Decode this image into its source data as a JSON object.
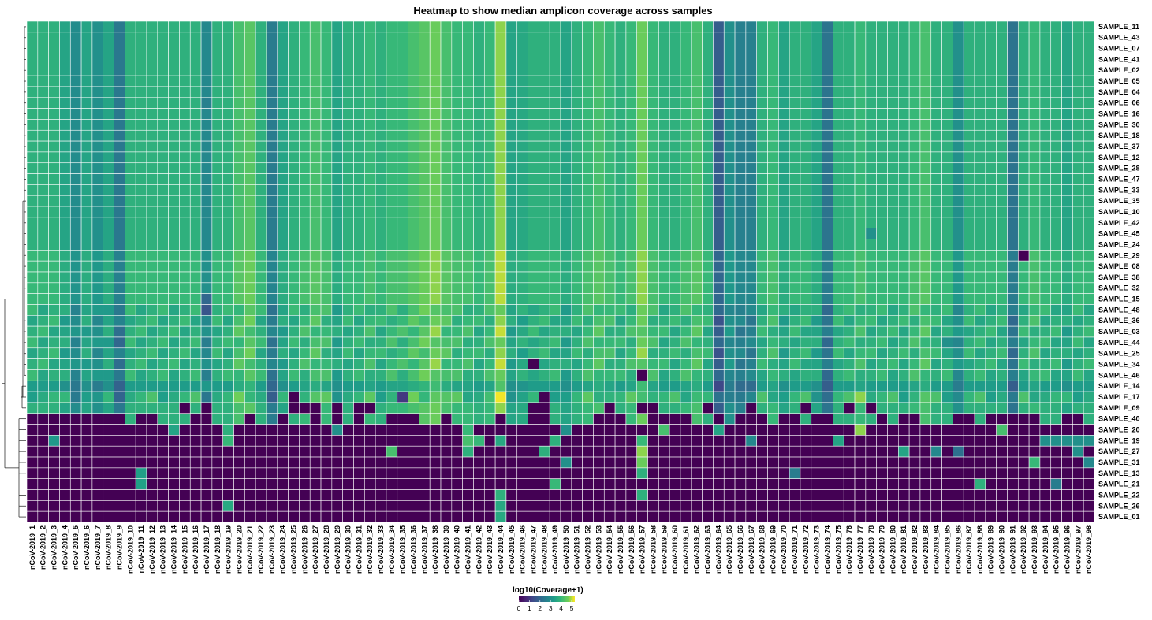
{
  "chart_data": {
    "type": "heatmap",
    "title": "Heatmap to show median amplicon coverage across samples",
    "rows": [
      "SAMPLE_11",
      "SAMPLE_43",
      "SAMPLE_07",
      "SAMPLE_41",
      "SAMPLE_02",
      "SAMPLE_05",
      "SAMPLE_04",
      "SAMPLE_06",
      "SAMPLE_16",
      "SAMPLE_30",
      "SAMPLE_18",
      "SAMPLE_37",
      "SAMPLE_12",
      "SAMPLE_28",
      "SAMPLE_47",
      "SAMPLE_33",
      "SAMPLE_35",
      "SAMPLE_10",
      "SAMPLE_42",
      "SAMPLE_45",
      "SAMPLE_24",
      "SAMPLE_29",
      "SAMPLE_08",
      "SAMPLE_38",
      "SAMPLE_32",
      "SAMPLE_15",
      "SAMPLE_48",
      "SAMPLE_36",
      "SAMPLE_03",
      "SAMPLE_44",
      "SAMPLE_25",
      "SAMPLE_34",
      "SAMPLE_46",
      "SAMPLE_14",
      "SAMPLE_17",
      "SAMPLE_09",
      "SAMPLE_40",
      "SAMPLE_20",
      "SAMPLE_19",
      "SAMPLE_27",
      "SAMPLE_31",
      "SAMPLE_13",
      "SAMPLE_21",
      "SAMPLE_22",
      "SAMPLE_26",
      "SAMPLE_01"
    ],
    "columns": [
      "nCoV-2019_1",
      "nCoV-2019_2",
      "nCoV-2019_3",
      "nCoV-2019_4",
      "nCoV-2019_5",
      "nCoV-2019_6",
      "nCoV-2019_7",
      "nCoV-2019_8",
      "nCoV-2019_9",
      "nCoV-2019_10",
      "nCoV-2019_11",
      "nCoV-2019_12",
      "nCoV-2019_13",
      "nCoV-2019_14",
      "nCoV-2019_15",
      "nCoV-2019_16",
      "nCoV-2019_17",
      "nCoV-2019_18",
      "nCoV-2019_19",
      "nCoV-2019_20",
      "nCoV-2019_21",
      "nCoV-2019_22",
      "nCoV-2019_23",
      "nCoV-2019_24",
      "nCoV-2019_25",
      "nCoV-2019_26",
      "nCoV-2019_27",
      "nCoV-2019_28",
      "nCoV-2019_29",
      "nCoV-2019_30",
      "nCoV-2019_31",
      "nCoV-2019_32",
      "nCoV-2019_33",
      "nCoV-2019_34",
      "nCoV-2019_35",
      "nCoV-2019_36",
      "nCoV-2019_37",
      "nCoV-2019_38",
      "nCoV-2019_39",
      "nCoV-2019_40",
      "nCoV-2019_41",
      "nCoV-2019_42",
      "nCoV-2019_43",
      "nCoV-2019_44",
      "nCoV-2019_45",
      "nCoV-2019_46",
      "nCoV-2019_47",
      "nCoV-2019_48",
      "nCoV-2019_49",
      "nCoV-2019_50",
      "nCoV-2019_51",
      "nCoV-2019_52",
      "nCoV-2019_53",
      "nCoV-2019_54",
      "nCoV-2019_55",
      "nCoV-2019_56",
      "nCoV-2019_57",
      "nCoV-2019_58",
      "nCoV-2019_59",
      "nCoV-2019_60",
      "nCoV-2019_61",
      "nCoV-2019_62",
      "nCoV-2019_63",
      "nCoV-2019_64",
      "nCoV-2019_65",
      "nCoV-2019_66",
      "nCoV-2019_67",
      "nCoV-2019_68",
      "nCoV-2019_69",
      "nCoV-2019_70",
      "nCoV-2019_71",
      "nCoV-2019_72",
      "nCoV-2019_73",
      "nCoV-2019_74",
      "nCoV-2019_75",
      "nCoV-2019_76",
      "nCoV-2019_77",
      "nCoV-2019_78",
      "nCoV-2019_79",
      "nCoV-2019_80",
      "nCoV-2019_81",
      "nCoV-2019_82",
      "nCoV-2019_83",
      "nCoV-2019_84",
      "nCoV-2019_85",
      "nCoV-2019_86",
      "nCoV-2019_87",
      "nCoV-2019_88",
      "nCoV-2019_89",
      "nCoV-2019_90",
      "nCoV-2019_91",
      "nCoV-2019_92",
      "nCoV-2019_93",
      "nCoV-2019_94",
      "nCoV-2019_95",
      "nCoV-2019_96",
      "nCoV-2019_97",
      "nCoV-2019_98"
    ],
    "col_base": [
      3.8,
      3.8,
      3.8,
      3.5,
      2.9,
      3.5,
      3.0,
      3.5,
      2.4,
      3.8,
      3.8,
      3.8,
      3.8,
      3.8,
      3.8,
      3.8,
      2.8,
      3.8,
      3.8,
      4.2,
      4.4,
      3.8,
      2.5,
      3.5,
      3.8,
      4.0,
      4.2,
      4.0,
      3.5,
      3.8,
      3.8,
      4.0,
      3.8,
      4.0,
      4.0,
      4.2,
      4.4,
      4.6,
      4.2,
      4.0,
      4.0,
      3.8,
      4.0,
      4.8,
      3.5,
      3.6,
      3.8,
      3.8,
      3.8,
      3.5,
      3.8,
      4.0,
      4.2,
      4.0,
      3.8,
      4.0,
      4.6,
      4.0,
      3.8,
      3.8,
      4.0,
      4.2,
      3.8,
      1.8,
      3.0,
      2.6,
      2.6,
      3.8,
      4.0,
      3.5,
      3.8,
      3.8,
      3.5,
      2.3,
      3.8,
      3.8,
      4.0,
      3.8,
      3.8,
      3.8,
      3.8,
      4.0,
      4.2,
      3.8,
      3.8,
      3.0,
      3.8,
      3.8,
      3.8,
      3.8,
      2.3,
      3.8,
      4.0,
      3.8,
      3.8,
      3.5,
      3.8,
      3.8
    ],
    "high_rows": 37,
    "low_value": 0,
    "overrides": [
      [
        7,
        16,
        2.6
      ],
      [
        19,
        77,
        3.0
      ],
      [
        21,
        91,
        0
      ],
      [
        25,
        16,
        2.0
      ],
      [
        26,
        16,
        1.6
      ],
      [
        27,
        56,
        4.6
      ],
      [
        29,
        8,
        2.0
      ],
      [
        29,
        84,
        3.0
      ],
      [
        31,
        46,
        0
      ],
      [
        32,
        56,
        0
      ],
      [
        33,
        16,
        3.2
      ],
      [
        34,
        22,
        1.8
      ],
      [
        34,
        24,
        0
      ],
      [
        34,
        34,
        1.0
      ],
      [
        34,
        47,
        0
      ],
      [
        34,
        76,
        4.8
      ],
      [
        35,
        14,
        0
      ],
      [
        35,
        16,
        0
      ],
      [
        35,
        24,
        0
      ],
      [
        35,
        25,
        0
      ],
      [
        35,
        26,
        0
      ],
      [
        35,
        28,
        0
      ],
      [
        35,
        30,
        0
      ],
      [
        35,
        31,
        0
      ],
      [
        35,
        46,
        0
      ],
      [
        35,
        47,
        0
      ],
      [
        35,
        53,
        0
      ],
      [
        35,
        56,
        0
      ],
      [
        35,
        57,
        0
      ],
      [
        35,
        62,
        0
      ],
      [
        35,
        66,
        0
      ],
      [
        35,
        71,
        0
      ],
      [
        35,
        75,
        0
      ],
      [
        35,
        77,
        0
      ],
      [
        36,
        0,
        0
      ],
      [
        36,
        1,
        0
      ],
      [
        36,
        2,
        0
      ],
      [
        36,
        3,
        0
      ],
      [
        36,
        4,
        0
      ],
      [
        36,
        5,
        0
      ],
      [
        36,
        6,
        0
      ],
      [
        36,
        7,
        0
      ],
      [
        36,
        8,
        0
      ],
      [
        36,
        10,
        0
      ],
      [
        36,
        11,
        0
      ],
      [
        36,
        15,
        0
      ],
      [
        36,
        16,
        0
      ],
      [
        36,
        20,
        0
      ],
      [
        36,
        23,
        0
      ],
      [
        36,
        26,
        0
      ],
      [
        36,
        28,
        0
      ],
      [
        36,
        30,
        0
      ],
      [
        36,
        33,
        0
      ],
      [
        36,
        34,
        0
      ],
      [
        36,
        35,
        0
      ],
      [
        36,
        38,
        0
      ],
      [
        36,
        43,
        0
      ],
      [
        36,
        46,
        0
      ],
      [
        36,
        47,
        0
      ],
      [
        36,
        52,
        0
      ],
      [
        36,
        53,
        0
      ],
      [
        36,
        54,
        0
      ],
      [
        36,
        57,
        0
      ],
      [
        36,
        58,
        0
      ],
      [
        36,
        59,
        0
      ],
      [
        36,
        60,
        0
      ],
      [
        36,
        63,
        0
      ],
      [
        36,
        65,
        0
      ],
      [
        36,
        66,
        0
      ],
      [
        36,
        67,
        0
      ],
      [
        36,
        69,
        0
      ],
      [
        36,
        70,
        0
      ],
      [
        36,
        72,
        0
      ],
      [
        36,
        73,
        0
      ],
      [
        36,
        78,
        0
      ],
      [
        36,
        80,
        0
      ],
      [
        36,
        81,
        0
      ],
      [
        36,
        85,
        0
      ],
      [
        36,
        86,
        0
      ],
      [
        36,
        88,
        0
      ],
      [
        36,
        89,
        0
      ],
      [
        36,
        90,
        0
      ],
      [
        36,
        91,
        0
      ],
      [
        36,
        92,
        0
      ],
      [
        36,
        95,
        0
      ],
      [
        36,
        96,
        0
      ],
      [
        37,
        13,
        3.5
      ],
      [
        37,
        18,
        3.8
      ],
      [
        37,
        28,
        3.0
      ],
      [
        37,
        40,
        4.0
      ],
      [
        37,
        49,
        3.0
      ],
      [
        37,
        58,
        4.2
      ],
      [
        37,
        63,
        3.5
      ],
      [
        37,
        76,
        4.8
      ],
      [
        37,
        89,
        4.2
      ],
      [
        38,
        2,
        3.2
      ],
      [
        38,
        18,
        4.0
      ],
      [
        38,
        40,
        4.2
      ],
      [
        38,
        41,
        4.0
      ],
      [
        38,
        43,
        3.6
      ],
      [
        38,
        48,
        3.8
      ],
      [
        38,
        56,
        4.0
      ],
      [
        38,
        66,
        2.8
      ],
      [
        38,
        74,
        3.5
      ],
      [
        38,
        93,
        3.0
      ],
      [
        38,
        94,
        3.0
      ],
      [
        38,
        95,
        3.0
      ],
      [
        38,
        96,
        3.0
      ],
      [
        38,
        97,
        3.0
      ],
      [
        39,
        33,
        4.2
      ],
      [
        39,
        40,
        3.8
      ],
      [
        39,
        47,
        3.8
      ],
      [
        39,
        56,
        4.8
      ],
      [
        39,
        80,
        3.5
      ],
      [
        39,
        83,
        2.8
      ],
      [
        39,
        85,
        2.2
      ],
      [
        39,
        96,
        3.0
      ],
      [
        40,
        49,
        3.0
      ],
      [
        40,
        56,
        4.6
      ],
      [
        40,
        92,
        4.0
      ],
      [
        40,
        97,
        2.8
      ],
      [
        41,
        10,
        3.4
      ],
      [
        41,
        56,
        3.8
      ],
      [
        41,
        70,
        2.5
      ],
      [
        42,
        10,
        3.4
      ],
      [
        42,
        48,
        4.0
      ],
      [
        42,
        87,
        3.8
      ],
      [
        42,
        94,
        2.5
      ],
      [
        43,
        43,
        3.8
      ],
      [
        43,
        56,
        3.8
      ],
      [
        44,
        18,
        3.6
      ],
      [
        44,
        43,
        3.6
      ],
      [
        45,
        43,
        3.6
      ]
    ],
    "legend": {
      "title": "log10(Coverage+1)",
      "ticks": [
        "0",
        "1",
        "2",
        "3",
        "4",
        "5"
      ],
      "range": [
        0,
        5.3
      ]
    },
    "colormap": "viridis"
  }
}
